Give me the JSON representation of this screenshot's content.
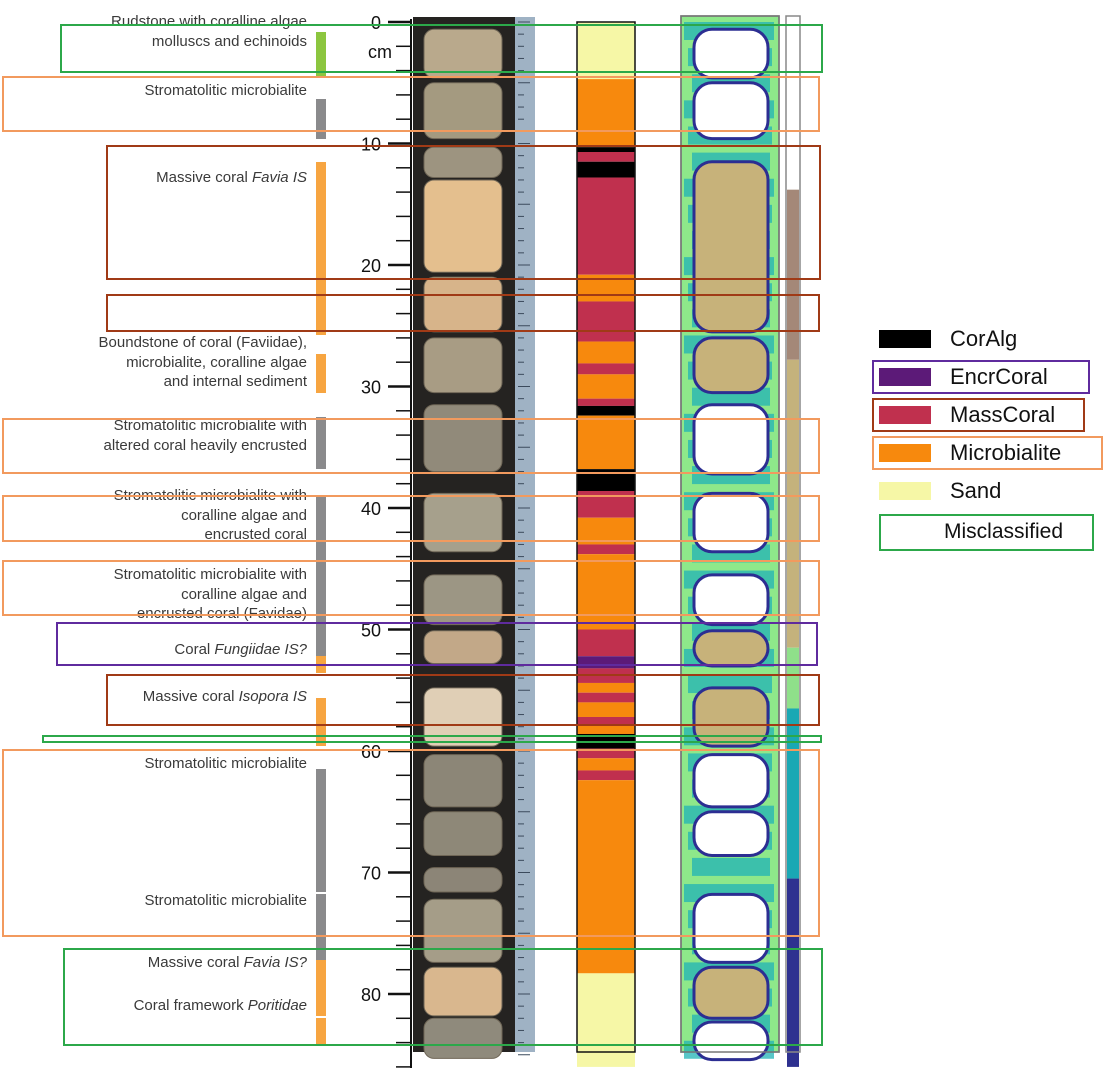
{
  "axis": {
    "zero_label": "0",
    "unit": "cm",
    "ticks": [
      {
        "depth": 10,
        "label": "10"
      },
      {
        "depth": 20,
        "label": "20"
      },
      {
        "depth": 30,
        "label": "30"
      },
      {
        "depth": 40,
        "label": "40"
      },
      {
        "depth": 50,
        "label": "50"
      },
      {
        "depth": 60,
        "label": "60"
      },
      {
        "depth": 70,
        "label": "70"
      },
      {
        "depth": 80,
        "label": "80"
      }
    ]
  },
  "descriptions": [
    {
      "lines": [
        "Rudstone with coralline algae",
        "molluscs and echinoids"
      ]
    },
    {
      "lines": [
        "Stromatolitic microbialite"
      ]
    },
    {
      "lines": [
        "Massive coral ",
        "Favia IS"
      ],
      "italic_tail": true
    },
    {
      "lines": [
        "Boundstone of coral (Faviidae),",
        "microbialite, coralline algae",
        "and internal sediment"
      ]
    },
    {
      "lines": [
        "Stromatolitic microbialite with",
        "altered coral heavily encrusted"
      ]
    },
    {
      "lines": [
        "Stromatolitic microbialite with",
        "coralline algae and",
        "encrusted coral"
      ]
    },
    {
      "lines": [
        "Stromatolitic microbialite with",
        "coralline algae and",
        "encrusted coral (Favidae)"
      ]
    },
    {
      "lines": [
        "Coral ",
        "Fungiidae IS?"
      ],
      "italic_tail": true
    },
    {
      "lines": [
        "Massive coral ",
        "Isopora IS"
      ],
      "italic_tail": true
    },
    {
      "lines": [
        "Stromatolitic microbialite"
      ]
    },
    {
      "lines": [
        "Stromatolitic microbialite"
      ]
    },
    {
      "lines": [
        "Massive coral ",
        "Favia IS?"
      ],
      "italic_tail": true
    },
    {
      "lines": [
        "Coral framework ",
        "Poritidae"
      ],
      "italic_tail": true
    }
  ],
  "lithology_bars": [
    {
      "from": 0.8,
      "to": 4.6,
      "color": "#8cc63f"
    },
    {
      "from": 6.3,
      "to": 9.6,
      "color": "#8a8a8c"
    },
    {
      "from": 11.5,
      "to": 25.8,
      "color": "#f7a541"
    },
    {
      "from": 27.3,
      "to": 30.5,
      "color": "#f7a541"
    },
    {
      "from": 32.5,
      "to": 36.8,
      "color": "#8a8a8c"
    },
    {
      "from": 39.0,
      "to": 46.0,
      "color": "#8a8a8c"
    },
    {
      "from": 46.0,
      "to": 52.2,
      "color": "#8a8a8c"
    },
    {
      "from": 52.2,
      "to": 53.6,
      "color": "#f7a541"
    },
    {
      "from": 55.6,
      "to": 59.6,
      "color": "#f7a541"
    },
    {
      "from": 61.5,
      "to": 71.6,
      "color": "#8a8a8c"
    },
    {
      "from": 71.8,
      "to": 77.2,
      "color": "#8a8a8c"
    },
    {
      "from": 77.2,
      "to": 81.8,
      "color": "#f7a541"
    },
    {
      "from": 82.0,
      "to": 84.3,
      "color": "#f7a541"
    }
  ],
  "classification_column": [
    {
      "from": 0.0,
      "to": 4.7,
      "class": "Sand"
    },
    {
      "from": 4.7,
      "to": 10.3,
      "class": "Microbialite"
    },
    {
      "from": 10.3,
      "to": 10.7,
      "class": "CorAlg"
    },
    {
      "from": 10.7,
      "to": 11.5,
      "class": "MassCoral"
    },
    {
      "from": 11.5,
      "to": 12.8,
      "class": "CorAlg"
    },
    {
      "from": 12.8,
      "to": 20.8,
      "class": "MassCoral"
    },
    {
      "from": 20.8,
      "to": 23.0,
      "class": "Microbialite"
    },
    {
      "from": 23.0,
      "to": 26.3,
      "class": "MassCoral"
    },
    {
      "from": 26.3,
      "to": 28.1,
      "class": "Microbialite"
    },
    {
      "from": 28.1,
      "to": 29.0,
      "class": "MassCoral"
    },
    {
      "from": 29.0,
      "to": 31.0,
      "class": "Microbialite"
    },
    {
      "from": 31.0,
      "to": 31.6,
      "class": "MassCoral"
    },
    {
      "from": 31.6,
      "to": 32.4,
      "class": "CorAlg"
    },
    {
      "from": 32.4,
      "to": 36.8,
      "class": "Microbialite"
    },
    {
      "from": 36.8,
      "to": 38.6,
      "class": "CorAlg"
    },
    {
      "from": 38.6,
      "to": 40.8,
      "class": "MassCoral"
    },
    {
      "from": 40.8,
      "to": 43.0,
      "class": "Microbialite"
    },
    {
      "from": 43.0,
      "to": 43.8,
      "class": "MassCoral"
    },
    {
      "from": 43.8,
      "to": 50.0,
      "class": "Microbialite"
    },
    {
      "from": 50.0,
      "to": 52.2,
      "class": "MassCoral"
    },
    {
      "from": 52.2,
      "to": 53.2,
      "class": "EncrCoral"
    },
    {
      "from": 53.2,
      "to": 54.4,
      "class": "MassCoral"
    },
    {
      "from": 54.4,
      "to": 55.2,
      "class": "Microbialite"
    },
    {
      "from": 55.2,
      "to": 56.0,
      "class": "MassCoral"
    },
    {
      "from": 56.0,
      "to": 57.2,
      "class": "Microbialite"
    },
    {
      "from": 57.2,
      "to": 57.8,
      "class": "MassCoral"
    },
    {
      "from": 57.8,
      "to": 58.6,
      "class": "Microbialite"
    },
    {
      "from": 58.6,
      "to": 59.8,
      "class": "CorAlg"
    },
    {
      "from": 59.8,
      "to": 60.6,
      "class": "MassCoral"
    },
    {
      "from": 60.6,
      "to": 61.6,
      "class": "Microbialite"
    },
    {
      "from": 61.6,
      "to": 62.4,
      "class": "MassCoral"
    },
    {
      "from": 62.4,
      "to": 78.3,
      "class": "Microbialite"
    },
    {
      "from": 78.3,
      "to": 86.0,
      "class": "Sand"
    }
  ],
  "right_strip": [
    {
      "from": 0.0,
      "to": 13.8,
      "color": "#ffffff"
    },
    {
      "from": 13.8,
      "to": 27.8,
      "color": "#a48878"
    },
    {
      "from": 27.8,
      "to": 51.5,
      "color": "#c4b27c"
    },
    {
      "from": 51.5,
      "to": 56.5,
      "color": "#8fe08a"
    },
    {
      "from": 56.5,
      "to": 70.5,
      "color": "#1aa8b4"
    },
    {
      "from": 70.5,
      "to": 86.0,
      "color": "#2e3190"
    }
  ],
  "legend": [
    {
      "label": "CorAlg",
      "color": "#000000",
      "frame": ""
    },
    {
      "label": "EncrCoral",
      "color": "#5c1a78",
      "frame": "#5f2b9e"
    },
    {
      "label": "MassCoral",
      "color": "#c0304e",
      "frame": "#a03a16"
    },
    {
      "label": "Microbialite",
      "color": "#f7890d",
      "frame": "#f29a5e"
    },
    {
      "label": "Sand",
      "color": "#f6f7a6",
      "frame": ""
    }
  ],
  "misclassified": {
    "label": "Misclassified",
    "color": "#2ca84a"
  },
  "highlight_boxes": [
    {
      "type": "misclassified",
      "color": "#2ca84a"
    },
    {
      "type": "Microbialite",
      "color": "#f29a5e"
    },
    {
      "type": "MassCoral",
      "color": "#a03a16"
    },
    {
      "type": "MassCoral",
      "color": "#a03a16"
    },
    {
      "type": "Microbialite",
      "color": "#f29a5e"
    },
    {
      "type": "Microbialite",
      "color": "#f29a5e"
    },
    {
      "type": "Microbialite",
      "color": "#f29a5e"
    },
    {
      "type": "EncrCoral",
      "color": "#5f2b9e"
    },
    {
      "type": "MassCoral",
      "color": "#a03a16"
    },
    {
      "type": "misclassified",
      "color": "#2ca84a"
    },
    {
      "type": "Microbialite",
      "color": "#f29a5e"
    },
    {
      "type": "misclassified",
      "color": "#2ca84a"
    }
  ]
}
